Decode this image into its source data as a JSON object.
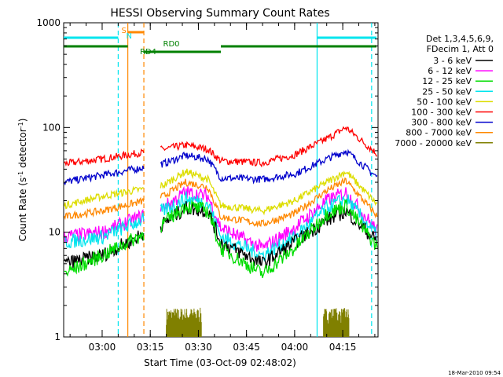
{
  "chart_data": {
    "type": "line",
    "title": "HESSI Observing Summary Count Rates",
    "xlabel": "Start Time (03-Oct-09 02:48:02)",
    "ylabel": "Count Rate (s",
    "ylabel_sup1": "-1",
    "ylabel_mid": " detector",
    "ylabel_sup2": "-1",
    "ylabel_end": ")",
    "y_scale": "log",
    "ylim": [
      1,
      1000
    ],
    "xlim": [
      "02:48",
      "04:26"
    ],
    "x_ticks": [
      "03:00",
      "03:15",
      "03:30",
      "03:45",
      "04:00",
      "04:15"
    ],
    "y_ticks": [
      "1",
      "10",
      "100",
      "1000"
    ],
    "footer_date": "18-Mar-2010 09:54",
    "legend_header": [
      "Det 1,3,4,5,6,9,",
      "FDecim 1, Att 0"
    ],
    "legend_position": "right",
    "gaps": [
      [
        "03:13",
        "03:18"
      ]
    ],
    "annotations": [
      {
        "text": "RD0",
        "x": "03:19"
      },
      {
        "text": "RD4",
        "x": "03:12"
      },
      {
        "text": "S",
        "x": "03:06"
      },
      {
        "text": "N",
        "x": "03:07"
      }
    ],
    "vertical_lines": [
      {
        "x": "03:05",
        "color": "#00e5ee",
        "style": "dashed"
      },
      {
        "x": "03:08",
        "color": "#ff8800",
        "style": "solid"
      },
      {
        "x": "03:13",
        "color": "#ff8800",
        "style": "dashed"
      },
      {
        "x": "04:07",
        "color": "#00e5ee",
        "style": "solid"
      },
      {
        "x": "04:24",
        "color": "#00e5ee",
        "style": "dashed"
      }
    ],
    "series": [
      {
        "name": "3 - 6 keV",
        "color": "#000000",
        "values": [
          5,
          6,
          12,
          17,
          16,
          8,
          5,
          8,
          13,
          16,
          8
        ]
      },
      {
        "name": "6 - 12 keV",
        "color": "#ff00ff",
        "values": [
          9,
          10,
          17,
          24,
          22,
          11,
          7,
          11,
          20,
          24,
          10
        ]
      },
      {
        "name": "12 - 25 keV",
        "color": "#00dd00",
        "values": [
          4,
          6,
          12,
          18,
          16,
          7,
          4,
          7,
          15,
          18,
          7
        ]
      },
      {
        "name": "25 - 50 keV",
        "color": "#00e5ee",
        "values": [
          8,
          9,
          16,
          21,
          19,
          9,
          6,
          9,
          17,
          21,
          9
        ]
      },
      {
        "name": "50 - 100 keV",
        "color": "#dddd00",
        "values": [
          18,
          22,
          28,
          38,
          32,
          18,
          16,
          20,
          30,
          38,
          18
        ]
      },
      {
        "name": "100 - 300 keV",
        "color": "#ff0000",
        "values": [
          45,
          50,
          62,
          68,
          62,
          48,
          46,
          55,
          78,
          100,
          55
        ]
      },
      {
        "name": "300 - 800 keV",
        "color": "#0000cc",
        "values": [
          30,
          35,
          45,
          54,
          50,
          33,
          32,
          36,
          50,
          60,
          33
        ]
      },
      {
        "name": "800 - 7000 keV",
        "color": "#ff8800",
        "values": [
          14,
          16,
          22,
          30,
          27,
          14,
          12,
          15,
          25,
          31,
          14
        ]
      },
      {
        "name": "7000 - 20000 keV",
        "color": "#808000",
        "values": [
          0,
          0,
          1.8,
          1.8,
          1.8,
          0,
          0,
          0,
          0,
          1.8,
          0
        ]
      }
    ],
    "x": [
      "02:48",
      "03:00",
      "03:19",
      "03:26",
      "03:33",
      "03:37",
      "03:50",
      "04:00",
      "04:10",
      "04:16",
      "04:26"
    ]
  }
}
